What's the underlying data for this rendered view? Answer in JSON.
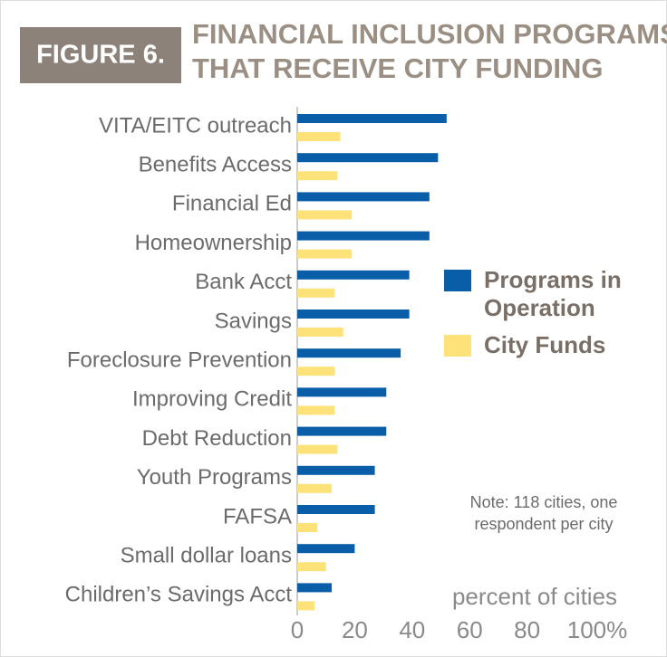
{
  "chart_data": {
    "type": "hbar",
    "figure_label": "FIGURE 6.",
    "title": [
      "FINANCIAL INCLUSION PROGRAMS",
      "THAT RECEIVE CITY FUNDING"
    ],
    "categories": [
      "VITA/EITC outreach",
      "Benefits Access",
      "Financial Ed",
      "Homeownership",
      "Bank Acct",
      "Savings",
      "Foreclosure Prevention",
      "Improving Credit",
      "Debt Reduction",
      "Youth Programs",
      "FAFSA",
      "Small dollar loans",
      "Children’s Savings Acct"
    ],
    "series": [
      {
        "name": "Programs in Operation",
        "color": "#0a5ea8",
        "values": [
          52,
          49,
          46,
          46,
          39,
          39,
          36,
          31,
          31,
          27,
          27,
          20,
          12
        ]
      },
      {
        "name": "City Funds",
        "color": "#fde27a",
        "values": [
          15,
          14,
          19,
          19,
          13,
          16,
          13,
          13,
          14,
          12,
          7,
          10,
          6
        ]
      }
    ],
    "xlim": [
      0,
      100
    ],
    "xticks": [
      0,
      20,
      40,
      60,
      80,
      {
        "value": 100,
        "label": "100%"
      }
    ],
    "xlabel": "percent of cities",
    "note": [
      "Note: 118 cities, one",
      "respondent per city"
    ],
    "legend": "right"
  }
}
